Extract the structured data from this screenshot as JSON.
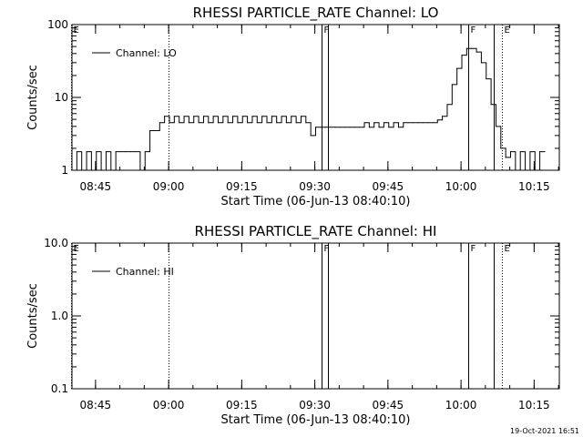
{
  "timestamp": "19-Oct-2021 16:51",
  "chart_data": [
    {
      "type": "line",
      "title": "RHESSI PARTICLE_RATE Channel: LO",
      "xlabel": "Start Time (06-Jun-13 08:40:10)",
      "ylabel": "Counts/sec",
      "x_unit": "minutes after 08:40:10",
      "xlim": [
        0,
        100
      ],
      "ylim": [
        1,
        100
      ],
      "yscale": "log",
      "xticks": [
        "08:45",
        "09:00",
        "09:15",
        "09:30",
        "09:45",
        "10:00",
        "10:15"
      ],
      "yticks": [
        "1",
        "10",
        "100"
      ],
      "legend": "top-left",
      "series": [
        {
          "name": "Channel: LO",
          "x": [
            0,
            1,
            2,
            3,
            4,
            5,
            6,
            7,
            8,
            9,
            10,
            11,
            12,
            13,
            14,
            15,
            16,
            17,
            18,
            19,
            20,
            21,
            22,
            23,
            24,
            25,
            26,
            27,
            28,
            29,
            30,
            31,
            32,
            33,
            34,
            35,
            36,
            37,
            38,
            39,
            40,
            41,
            42,
            43,
            44,
            45,
            46,
            47,
            48,
            49,
            50,
            51,
            52,
            53,
            54,
            55,
            56,
            57,
            58,
            59,
            60,
            61,
            62,
            63,
            64,
            65,
            66,
            67,
            68,
            69,
            70,
            71,
            72,
            73,
            74,
            75,
            76,
            77,
            78,
            79,
            80,
            81,
            82,
            83,
            84,
            85,
            86,
            87,
            88,
            89,
            90,
            91,
            92,
            93,
            94,
            95,
            96,
            97
          ],
          "values": [
            1,
            1.8,
            1,
            1.8,
            1,
            1.8,
            1,
            1.8,
            1,
            1.8,
            1.8,
            1.8,
            1.8,
            1.8,
            1,
            1.8,
            3.5,
            3.5,
            4.5,
            5.5,
            4.5,
            5.5,
            4.5,
            5.5,
            4.5,
            5.5,
            4.5,
            5.5,
            4.5,
            5.5,
            4.5,
            5.5,
            4.5,
            5.5,
            4.5,
            5.5,
            4.5,
            5.5,
            4.5,
            5.5,
            4.5,
            5.5,
            4.5,
            5.5,
            4.5,
            5.5,
            4.5,
            5.5,
            4.5,
            3,
            3.9,
            3.9,
            3.9,
            3.9,
            3.9,
            3.9,
            3.9,
            3.9,
            3.9,
            3.9,
            4.5,
            3.9,
            4.5,
            3.9,
            4.5,
            3.9,
            4.5,
            3.9,
            4.5,
            4.5,
            4.5,
            4.5,
            4.5,
            4.5,
            4.5,
            4.9,
            5.5,
            8,
            15,
            25,
            38,
            47,
            47,
            42,
            30,
            18,
            8,
            4,
            2,
            1.5,
            1.8,
            1,
            1.8,
            1,
            1.8,
            1,
            1.8,
            1.8
          ]
        }
      ],
      "markers": [
        {
          "label": "E",
          "x": -0.1,
          "style": "dotted"
        },
        {
          "label": "",
          "x": 19.9,
          "style": "dotted"
        },
        {
          "label": "F",
          "x": 51.3,
          "style": "solid"
        },
        {
          "label": "",
          "x": 52.5,
          "style": "solid"
        },
        {
          "label": "F",
          "x": 81.3,
          "style": "solid"
        },
        {
          "label": "",
          "x": 86.5,
          "style": "solid"
        },
        {
          "label": "E",
          "x": 88.2,
          "style": "dotted"
        },
        {
          "label": "",
          "x": 107.1,
          "style": "dotted"
        }
      ]
    },
    {
      "type": "line",
      "title": "RHESSI PARTICLE_RATE Channel: HI",
      "xlabel": "Start Time (06-Jun-13 08:40:10)",
      "ylabel": "Counts/sec",
      "x_unit": "minutes after 08:40:10",
      "xlim": [
        0,
        100
      ],
      "ylim": [
        0.1,
        10
      ],
      "yscale": "log",
      "xticks": [
        "08:45",
        "09:00",
        "09:15",
        "09:30",
        "09:45",
        "10:00",
        "10:15"
      ],
      "yticks": [
        "0.1",
        "1.0",
        "10.0"
      ],
      "legend": "top-left",
      "series": [
        {
          "name": "Channel: HI",
          "x": [],
          "values": []
        }
      ],
      "markers": [
        {
          "label": "E",
          "x": -0.1,
          "style": "dotted"
        },
        {
          "label": "",
          "x": 19.9,
          "style": "dotted"
        },
        {
          "label": "F",
          "x": 51.3,
          "style": "solid"
        },
        {
          "label": "",
          "x": 52.5,
          "style": "solid"
        },
        {
          "label": "F",
          "x": 81.3,
          "style": "solid"
        },
        {
          "label": "",
          "x": 86.5,
          "style": "solid"
        },
        {
          "label": "E",
          "x": 88.2,
          "style": "dotted"
        },
        {
          "label": "",
          "x": 107.1,
          "style": "dotted"
        }
      ]
    }
  ]
}
